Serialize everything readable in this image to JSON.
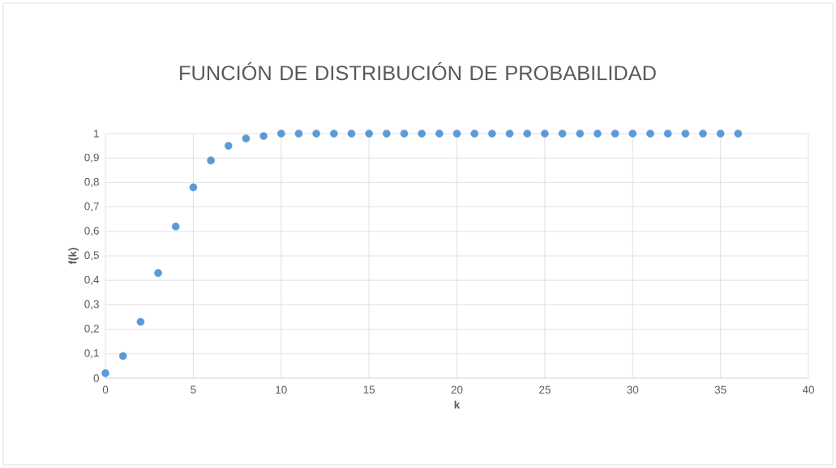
{
  "chart_data": {
    "type": "scatter",
    "title": "FUNCIÓN DE DISTRIBUCIÓN DE PROBABILIDAD",
    "xlabel": "k",
    "ylabel": "f(k)",
    "x": [
      0,
      1,
      2,
      3,
      4,
      5,
      6,
      7,
      8,
      9,
      10,
      11,
      12,
      13,
      14,
      15,
      16,
      17,
      18,
      19,
      20,
      21,
      22,
      23,
      24,
      25,
      26,
      27,
      28,
      29,
      30,
      31,
      32,
      33,
      34,
      35,
      36
    ],
    "series": [
      {
        "color": "#5b9bd5",
        "values": [
          0.02,
          0.09,
          0.23,
          0.43,
          0.62,
          0.78,
          0.89,
          0.95,
          0.98,
          0.99,
          1,
          1,
          1,
          1,
          1,
          1,
          1,
          1,
          1,
          1,
          1,
          1,
          1,
          1,
          1,
          1,
          1,
          1,
          1,
          1,
          1,
          1,
          1,
          1,
          1,
          1,
          1
        ]
      }
    ],
    "xlim": [
      0,
      40
    ],
    "xticks": [
      0,
      5,
      10,
      15,
      20,
      25,
      30,
      35,
      40
    ],
    "ylim": [
      0,
      1
    ],
    "yticks": [
      0,
      {
        "value": 0.1,
        "label": "0,1"
      },
      {
        "value": 0.2,
        "label": "0,2"
      },
      {
        "value": 0.3,
        "label": "0,3"
      },
      {
        "value": 0.4,
        "label": "0,4"
      },
      {
        "value": 0.5,
        "label": "0,5"
      },
      {
        "value": 0.6,
        "label": "0,6"
      },
      {
        "value": 0.7,
        "label": "0,7"
      },
      {
        "value": 0.8,
        "label": "0,8"
      },
      {
        "value": 0.9,
        "label": "0,9"
      },
      1
    ],
    "grid": true,
    "marker": "circle"
  }
}
